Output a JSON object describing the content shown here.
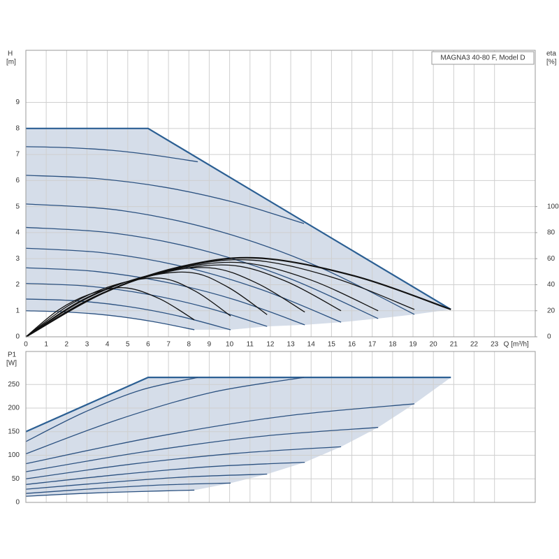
{
  "chart_data": [
    {
      "type": "line",
      "title": "MAGNA3 40-80 F, Model D",
      "ylabel": "H",
      "yunit": "[m]",
      "y2label": "eta",
      "y2unit": "[%]",
      "xlabel": "Q [m³/h]",
      "xlim": [
        0,
        25
      ],
      "xticks": [
        0,
        1,
        2,
        3,
        4,
        5,
        6,
        7,
        8,
        9,
        10,
        11,
        12,
        13,
        14,
        15,
        16,
        17,
        18,
        19,
        20,
        21,
        22,
        23
      ],
      "ylim": [
        0,
        11
      ],
      "yticks": [
        0,
        1,
        2,
        3,
        4,
        5,
        6,
        7,
        8,
        9
      ],
      "y2lim": [
        0,
        220
      ],
      "y2ticks": [
        0,
        20,
        40,
        60,
        80,
        100
      ],
      "grid": true,
      "area": {
        "color": "#d5dde9",
        "x": [
          0,
          6,
          20.86,
          19.07,
          17.29,
          15.47,
          13.69,
          11.84,
          10.05,
          8.27,
          6.2,
          4.14,
          2.07,
          0
        ],
        "values": [
          8,
          8,
          1.05,
          0.86,
          0.7,
          0.56,
          0.46,
          0.4,
          0.27,
          0.27,
          0.59,
          0.82,
          0.95,
          1.0
        ]
      },
      "series": [
        {
          "color": "#2b5f93",
          "smooth": false,
          "width": 2.2,
          "x": [
            0,
            6,
            20.86
          ],
          "values": [
            8,
            8,
            1.05
          ]
        },
        {
          "color": "#2b5180",
          "smooth": true,
          "width": 1.3,
          "x": [
            0,
            2.11,
            4.22,
            6.33,
            8.44
          ],
          "values": [
            7.3,
            7.26,
            7.16,
            6.97,
            6.72
          ]
        },
        {
          "color": "#2b5180",
          "smooth": true,
          "width": 1.3,
          "x": [
            0,
            3.41,
            6.83,
            10.24,
            13.65
          ],
          "values": [
            6.2,
            6.08,
            5.74,
            5.16,
            4.35
          ]
        },
        {
          "color": "#2b5180",
          "smooth": true,
          "width": 1.3,
          "x": [
            0,
            4.77,
            9.54,
            14.3,
            19.07
          ],
          "values": [
            5.1,
            4.84,
            4.04,
            2.71,
            0.86
          ]
        },
        {
          "color": "#2b5180",
          "smooth": true,
          "width": 1.3,
          "x": [
            0,
            4.32,
            8.65,
            12.97,
            17.29
          ],
          "values": [
            4.2,
            3.98,
            3.33,
            2.23,
            0.7
          ]
        },
        {
          "color": "#2b5180",
          "smooth": true,
          "width": 1.3,
          "x": [
            0,
            3.87,
            7.74,
            11.6,
            15.47
          ],
          "values": [
            3.4,
            3.22,
            2.69,
            1.8,
            0.56
          ]
        },
        {
          "color": "#2b5180",
          "smooth": true,
          "width": 1.3,
          "x": [
            0,
            3.42,
            6.85,
            10.27,
            13.69
          ],
          "values": [
            2.65,
            2.51,
            2.1,
            1.42,
            0.46
          ]
        },
        {
          "color": "#2b5180",
          "smooth": true,
          "width": 1.3,
          "x": [
            0,
            2.96,
            5.92,
            8.88,
            11.84
          ],
          "values": [
            2.05,
            1.95,
            1.64,
            1.12,
            0.4
          ]
        },
        {
          "color": "#2b5180",
          "smooth": true,
          "width": 1.3,
          "x": [
            0,
            2.51,
            5.03,
            7.54,
            10.05
          ],
          "values": [
            1.45,
            1.38,
            1.16,
            0.79,
            0.27
          ]
        },
        {
          "color": "#2b5180",
          "smooth": true,
          "width": 1.3,
          "x": [
            0,
            2.07,
            4.14,
            6.2,
            8.27
          ],
          "values": [
            1.0,
            0.95,
            0.82,
            0.59,
            0.27
          ]
        },
        {
          "color": "#111111",
          "smooth": true,
          "width": 1.3,
          "axis": "y2",
          "x": [
            0,
            1.63,
            3.27,
            4.9,
            6.59,
            8.27
          ],
          "values": [
            0,
            20.9,
            33.4,
            37.6,
            29.0,
            13
          ]
        },
        {
          "color": "#111111",
          "smooth": true,
          "width": 1.3,
          "axis": "y2",
          "x": [
            0,
            2.2,
            4.4,
            6.6,
            8.33,
            10.05
          ],
          "values": [
            0,
            25,
            40,
            45,
            34.9,
            16
          ]
        },
        {
          "color": "#111111",
          "smooth": true,
          "width": 1.3,
          "axis": "y2",
          "x": [
            0,
            2.67,
            5.33,
            8,
            9.92,
            11.84
          ],
          "values": [
            0,
            27.5,
            44,
            49.5,
            38.1,
            17
          ]
        },
        {
          "color": "#111111",
          "smooth": true,
          "width": 1.3,
          "axis": "y2",
          "x": [
            0,
            3,
            6,
            9,
            11.35,
            13.69
          ],
          "values": [
            0,
            29.5,
            47.1,
            53,
            41.1,
            19
          ]
        },
        {
          "color": "#111111",
          "smooth": true,
          "width": 1.3,
          "axis": "y2",
          "x": [
            0,
            3.33,
            6.67,
            10,
            12.74,
            15.47
          ],
          "values": [
            0,
            30.6,
            48.9,
            55,
            42.8,
            20
          ]
        },
        {
          "color": "#111111",
          "smooth": true,
          "width": 1.3,
          "axis": "y2",
          "x": [
            0,
            3.5,
            7,
            10.5,
            13.9,
            17.29
          ],
          "values": [
            0,
            31.7,
            50.7,
            57,
            44.1,
            20
          ]
        },
        {
          "color": "#111111",
          "smooth": true,
          "width": 1.3,
          "axis": "y2",
          "x": [
            0,
            3.67,
            7.33,
            11,
            15.04,
            19.07
          ],
          "values": [
            0,
            32.8,
            52.4,
            59,
            45.7,
            21
          ]
        },
        {
          "color": "#111111",
          "smooth": true,
          "width": 2.2,
          "axis": "y2",
          "x": [
            0,
            3.8,
            7.6,
            11.4,
            16.13,
            20.86
          ],
          "values": [
            0,
            33.6,
            53.8,
            60.5,
            46.7,
            21
          ]
        }
      ]
    },
    {
      "type": "line",
      "ylabel": "P1",
      "yunit": "[W]",
      "xlim": [
        0,
        25
      ],
      "xticks": [
        0,
        1,
        2,
        3,
        4,
        5,
        6,
        7,
        8,
        9,
        10,
        11,
        12,
        13,
        14,
        15,
        16,
        17,
        18,
        19,
        20,
        21,
        22,
        23
      ],
      "ylim": [
        0,
        320
      ],
      "yticks": [
        0,
        50,
        100,
        150,
        200,
        250
      ],
      "grid": true,
      "area": {
        "color": "#d5dde9",
        "x": [
          0,
          6,
          20.86,
          19.07,
          17.29,
          15.47,
          13.69,
          11.84,
          10.05,
          8.27,
          5.51,
          2.76,
          0
        ],
        "values": [
          150,
          265,
          265,
          209,
          159,
          118,
          85,
          60,
          41,
          26,
          23,
          19,
          13
        ]
      },
      "series": [
        {
          "color": "#2b5f93",
          "smooth": false,
          "width": 2.2,
          "x": [
            0,
            6,
            20.86
          ],
          "values": [
            150,
            265,
            265
          ]
        },
        {
          "color": "#2b5180",
          "smooth": true,
          "width": 1.3,
          "x": [
            0,
            2.81,
            5.63,
            8.44
          ],
          "values": [
            129,
            190,
            238,
            265
          ]
        },
        {
          "color": "#2b5180",
          "smooth": true,
          "width": 1.3,
          "x": [
            0,
            4.55,
            9.1,
            13.65
          ],
          "values": [
            103,
            176,
            233,
            265
          ]
        },
        {
          "color": "#2b5180",
          "smooth": true,
          "width": 1.3,
          "x": [
            0,
            6.36,
            12.71,
            19.07
          ],
          "values": [
            82,
            139,
            183,
            209
          ]
        },
        {
          "color": "#2b5180",
          "smooth": true,
          "width": 1.3,
          "x": [
            0,
            5.76,
            11.53,
            17.29
          ],
          "values": [
            65,
            107,
            140,
            159
          ]
        },
        {
          "color": "#2b5180",
          "smooth": true,
          "width": 1.3,
          "x": [
            0,
            5.16,
            10.31,
            15.47
          ],
          "values": [
            50,
            81,
            104,
            118
          ]
        },
        {
          "color": "#2b5180",
          "smooth": true,
          "width": 1.3,
          "x": [
            0,
            4.56,
            9.13,
            13.69
          ],
          "values": [
            38,
            59,
            76,
            85
          ]
        },
        {
          "color": "#2b5180",
          "smooth": true,
          "width": 1.3,
          "x": [
            0,
            3.95,
            7.89,
            11.84
          ],
          "values": [
            28,
            42,
            54,
            60
          ]
        },
        {
          "color": "#2b5180",
          "smooth": true,
          "width": 1.3,
          "x": [
            0,
            3.35,
            6.7,
            10.05
          ],
          "values": [
            19,
            29,
            37,
            41
          ]
        },
        {
          "color": "#2b5180",
          "smooth": true,
          "width": 1.3,
          "x": [
            0,
            2.76,
            5.51,
            8.27
          ],
          "values": [
            13,
            19,
            23,
            26
          ]
        }
      ]
    }
  ]
}
